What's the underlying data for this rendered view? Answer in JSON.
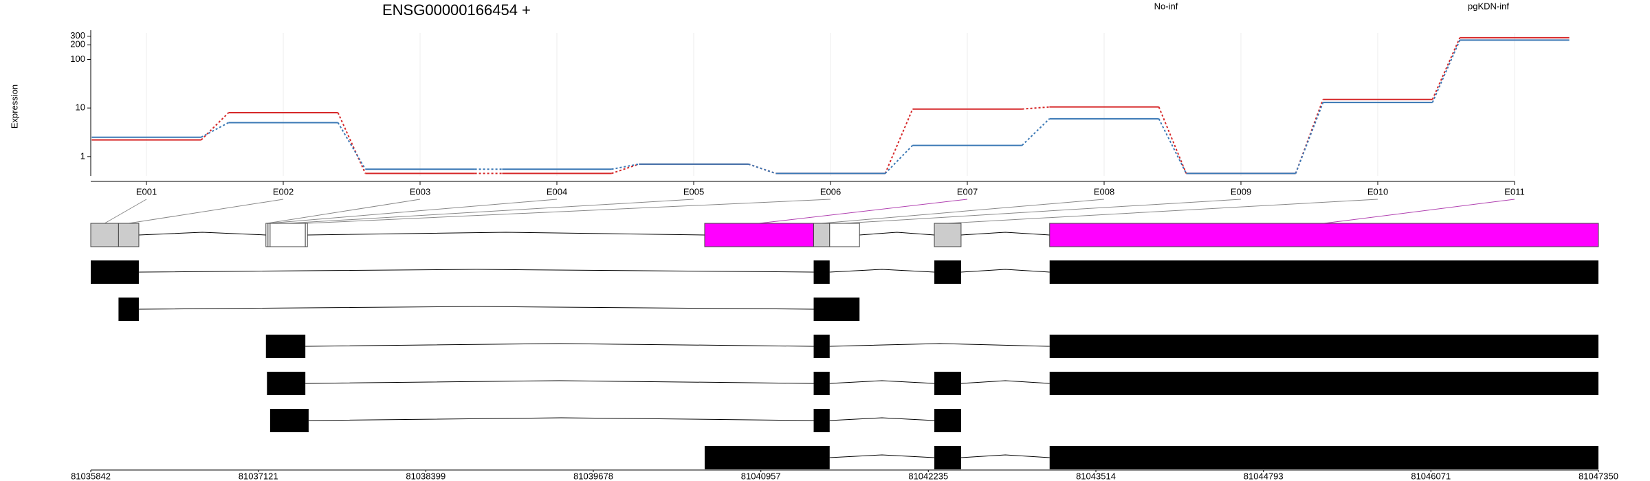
{
  "chart_data": {
    "type": "exon-expression",
    "title": "ENSG00000166454 +",
    "y_label": "Expression",
    "y_scale": "log",
    "categories": [
      "E001",
      "E002",
      "E003",
      "E004",
      "E005",
      "E006",
      "E007",
      "E008",
      "E009",
      "E010",
      "E011"
    ],
    "series": [
      {
        "name": "No-inf",
        "color": "#d62728",
        "values": [
          2.2,
          8,
          0.45,
          0.45,
          0.7,
          0.45,
          9.5,
          10.5,
          0.45,
          15,
          280
        ]
      },
      {
        "name": "pgKDN-inf",
        "color": "#3a78b5",
        "values": [
          2.5,
          5,
          0.55,
          0.55,
          0.7,
          0.45,
          1.7,
          6,
          0.45,
          13,
          250
        ]
      }
    ],
    "ylim": [
      0.4,
      350
    ],
    "yticks": [
      1,
      10,
      100,
      200,
      300
    ],
    "exon_ranges": [
      [
        81035842,
        81036054
      ],
      [
        81036054,
        81036209
      ],
      [
        81037179,
        81037195
      ],
      [
        81037195,
        81037211
      ],
      [
        81037211,
        81037480
      ],
      [
        81037480,
        81037496
      ],
      [
        81040528,
        81041360
      ],
      [
        81041360,
        81041482
      ],
      [
        81041482,
        81041710
      ],
      [
        81042281,
        81042485
      ],
      [
        81043161,
        81047350
      ]
    ],
    "exon_colors": [
      "#cccccc",
      "#cccccc",
      "#ffffff",
      "#ffffff",
      "#ffffff",
      "#ffffff",
      "#ff00ff",
      "#cccccc",
      "#ffffff",
      "#cccccc",
      "#ff00ff"
    ],
    "transcripts": [
      [
        [
          81035842,
          81036209
        ],
        [
          81041360,
          81041482
        ],
        [
          81042281,
          81042485
        ],
        [
          81043161,
          81047350
        ]
      ],
      [
        [
          81036054,
          81036209
        ],
        [
          81041360,
          81041710
        ]
      ],
      [
        [
          81037179,
          81037480
        ],
        [
          81041360,
          81041482
        ],
        [
          81043161,
          81047350
        ]
      ],
      [
        [
          81037187,
          81037480
        ],
        [
          81041360,
          81041482
        ],
        [
          81042281,
          81042485
        ],
        [
          81043161,
          81047350
        ]
      ],
      [
        [
          81037211,
          81037505
        ],
        [
          81041360,
          81041482
        ],
        [
          81042281,
          81042485
        ]
      ],
      [
        [
          81040528,
          81041482
        ],
        [
          81042281,
          81042485
        ],
        [
          81043161,
          81047350
        ]
      ]
    ],
    "xlim": [
      81035842,
      81047350
    ],
    "xticks": [
      81035842,
      81037121,
      81038399,
      81039678,
      81040957,
      81042235,
      81043514,
      81044793,
      81046071,
      81047350
    ]
  }
}
